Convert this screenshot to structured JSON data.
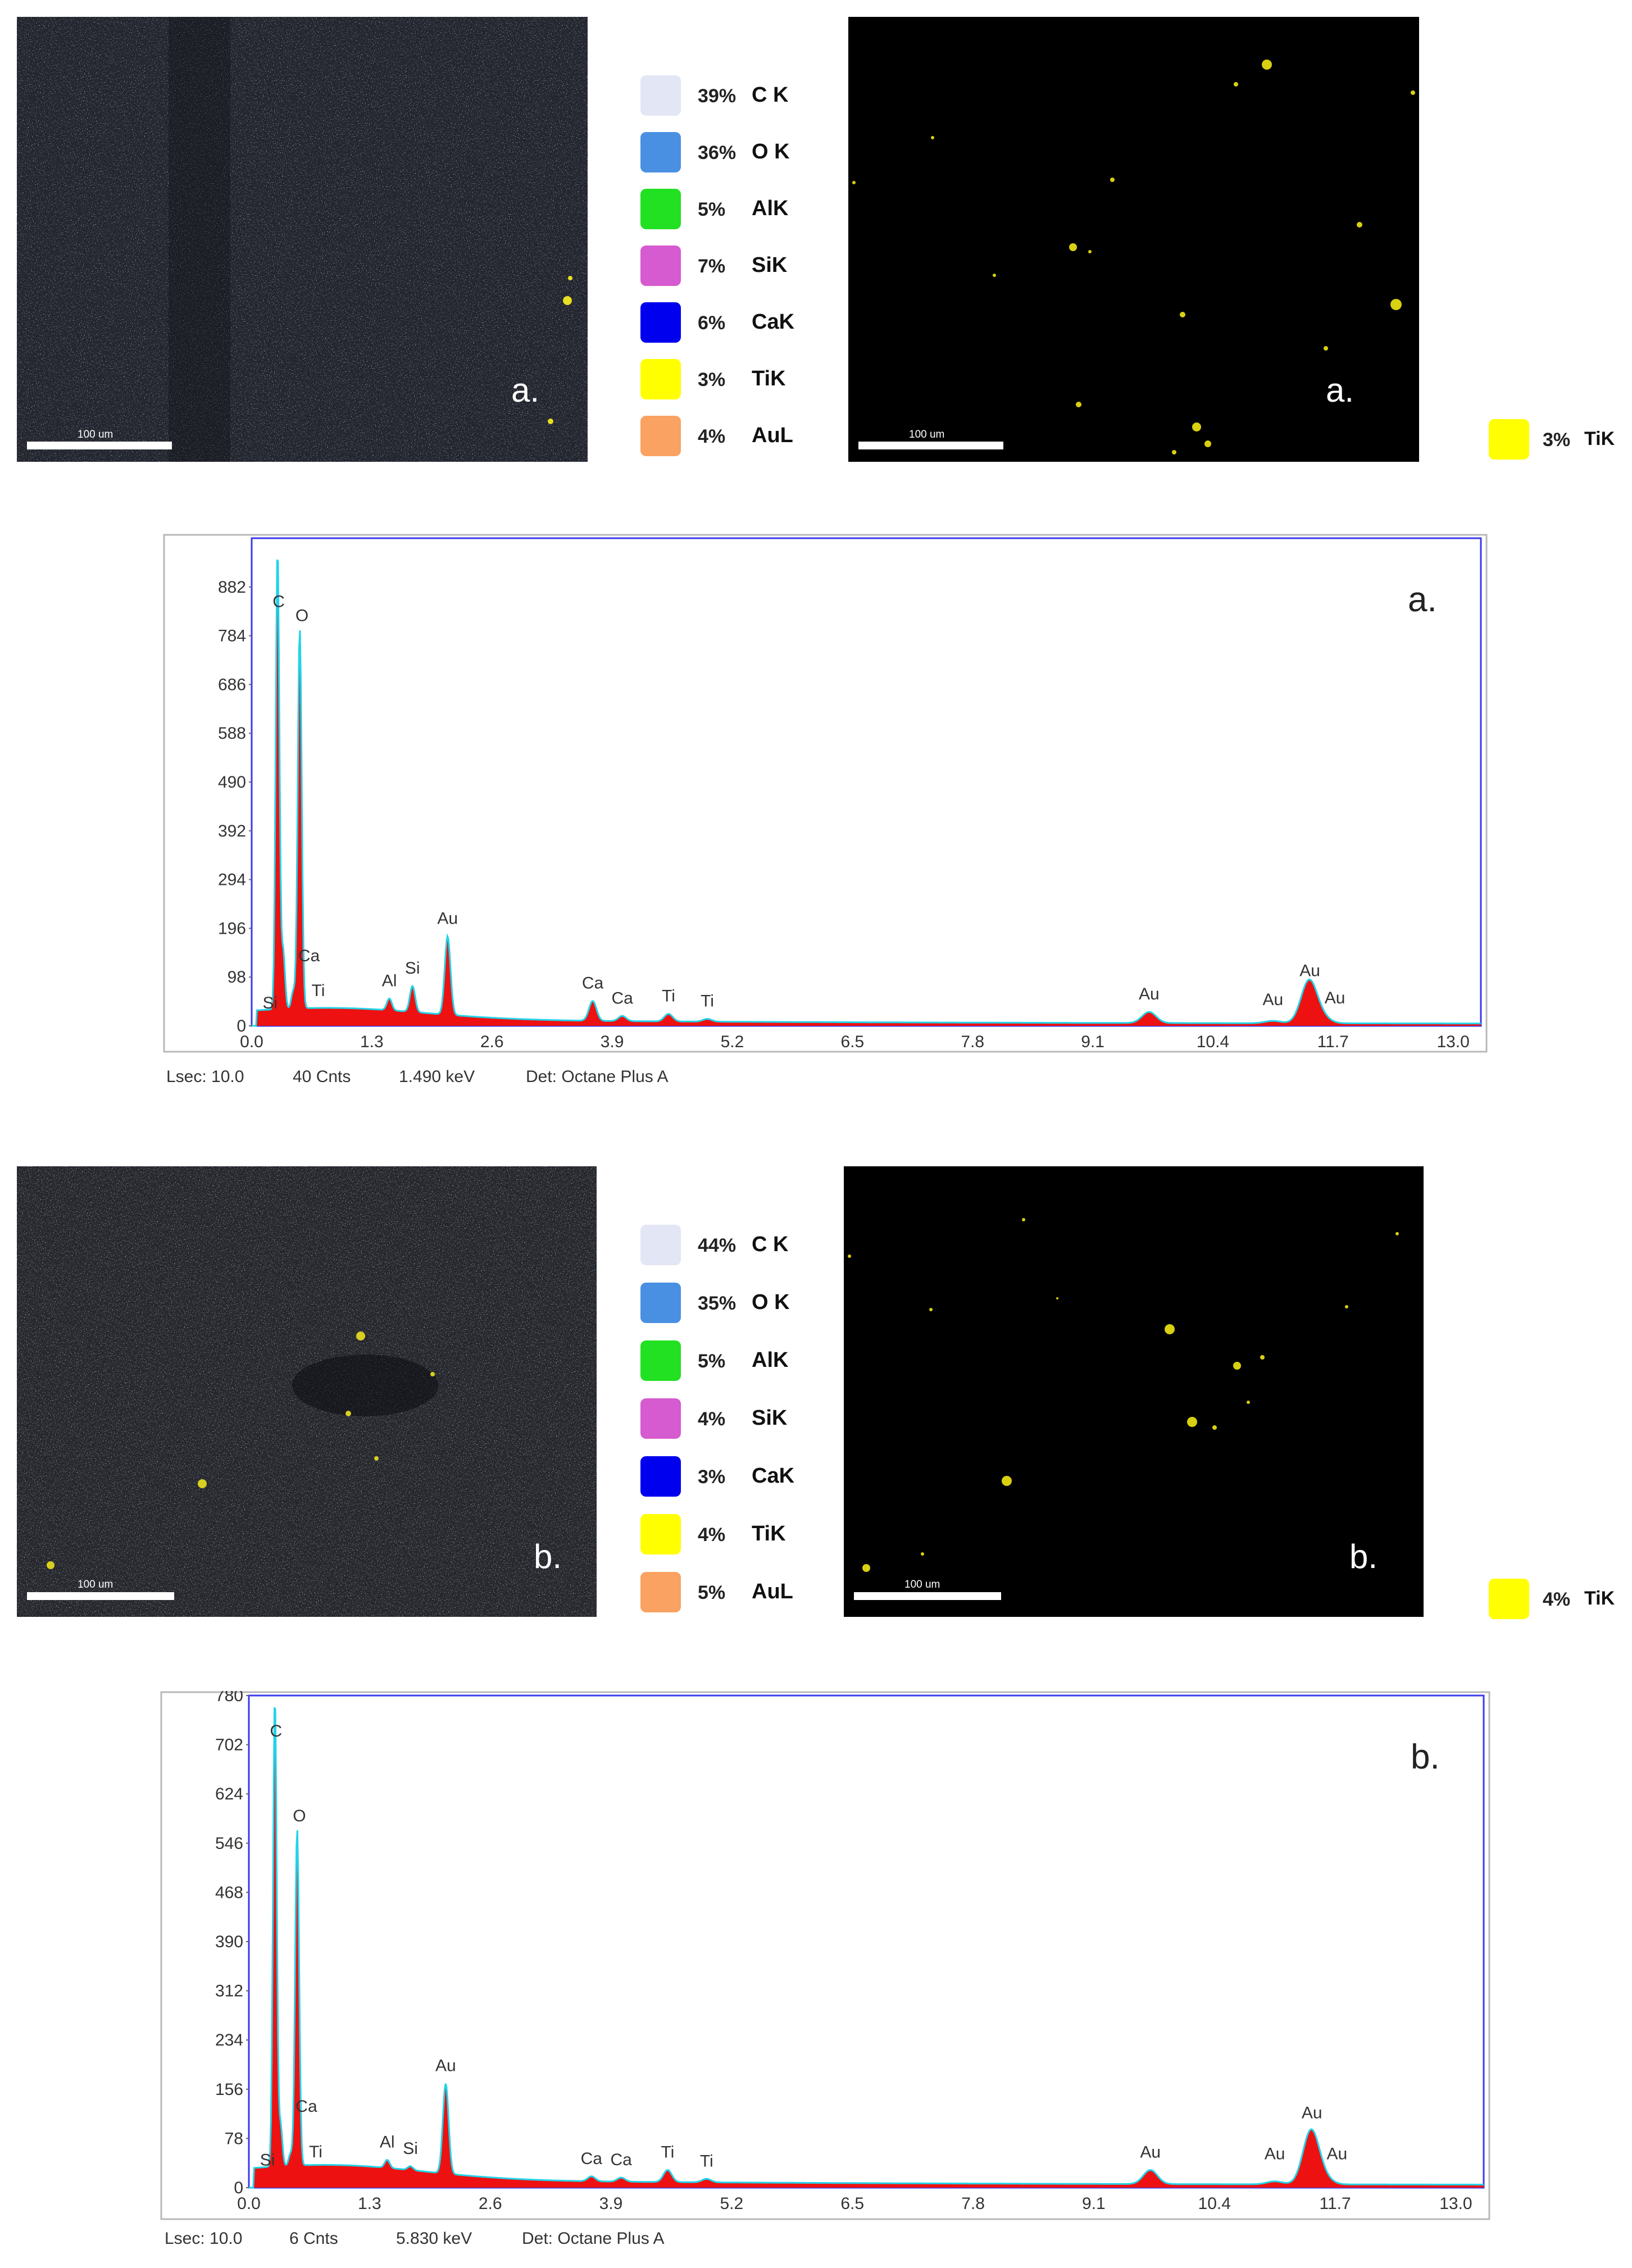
{
  "panels": [
    {
      "tag": "a.",
      "scalebar": "100 um",
      "legend": [
        {
          "pct": "39%",
          "element": "C K",
          "color": "#e3e6f4"
        },
        {
          "pct": "36%",
          "element": "O K",
          "color": "#4a90e2"
        },
        {
          "pct": "5%",
          "element": "AlK",
          "color": "#22e022"
        },
        {
          "pct": "7%",
          "element": "SiK",
          "color": "#d65ad0"
        },
        {
          "pct": "6%",
          "element": "CaK",
          "color": "#0000ee"
        },
        {
          "pct": "3%",
          "element": "TiK",
          "color": "#ffff00"
        },
        {
          "pct": "4%",
          "element": "AuL",
          "color": "#f9a261"
        }
      ],
      "ti_legend": {
        "pct": "3%",
        "element": "TiK",
        "color": "#ffff00"
      },
      "footer": {
        "lsec": "Lsec: 10.0",
        "cnts": "40 Cnts",
        "kev": "1.490 keV",
        "det": "Det: Octane Plus A"
      }
    },
    {
      "tag": "b.",
      "scalebar": "100 um",
      "legend": [
        {
          "pct": "44%",
          "element": "C K",
          "color": "#e3e6f4"
        },
        {
          "pct": "35%",
          "element": "O K",
          "color": "#4a90e2"
        },
        {
          "pct": "5%",
          "element": "AlK",
          "color": "#22e022"
        },
        {
          "pct": "4%",
          "element": "SiK",
          "color": "#d65ad0"
        },
        {
          "pct": "3%",
          "element": "CaK",
          "color": "#0000ee"
        },
        {
          "pct": "4%",
          "element": "TiK",
          "color": "#ffff00"
        },
        {
          "pct": "5%",
          "element": "AuL",
          "color": "#f9a261"
        }
      ],
      "ti_legend": {
        "pct": "4%",
        "element": "TiK",
        "color": "#ffff00"
      },
      "footer": {
        "lsec": "Lsec: 10.0",
        "cnts": "6 Cnts",
        "kev": "5.830 keV",
        "det": "Det: Octane Plus A"
      }
    }
  ],
  "chart_data": [
    {
      "type": "area",
      "title": "a.",
      "xlim": [
        0,
        13.3
      ],
      "ylim": [
        0,
        980
      ],
      "x_ticks": [
        "0.0",
        "1.3",
        "2.6",
        "3.9",
        "5.2",
        "6.5",
        "7.8",
        "9.1",
        "10.4",
        "11.7",
        "13.0"
      ],
      "y_ticks": [
        "0",
        "98",
        "196",
        "294",
        "392",
        "490",
        "588",
        "686",
        "784",
        "882"
      ],
      "peaks": [
        {
          "x": 0.28,
          "y": 960,
          "label": "C"
        },
        {
          "x": 0.52,
          "y": 800,
          "label": "O"
        },
        {
          "x": 0.13,
          "y": 30,
          "label": "Si"
        },
        {
          "x": 0.34,
          "y": 150,
          "label": "Ca"
        },
        {
          "x": 0.45,
          "y": 70,
          "label": "Ti"
        },
        {
          "x": 1.49,
          "y": 55,
          "label": "Al"
        },
        {
          "x": 1.74,
          "y": 80,
          "label": "Si"
        },
        {
          "x": 2.12,
          "y": 180,
          "label": "Au"
        },
        {
          "x": 3.69,
          "y": 50,
          "label": "Ca"
        },
        {
          "x": 4.01,
          "y": 20,
          "label": "Ca"
        },
        {
          "x": 4.51,
          "y": 24,
          "label": "Ti"
        },
        {
          "x": 4.93,
          "y": 14,
          "label": "Ti"
        },
        {
          "x": 9.71,
          "y": 28,
          "label": "Au"
        },
        {
          "x": 11.05,
          "y": 10,
          "label": "Au"
        },
        {
          "x": 11.44,
          "y": 90,
          "label": "Au"
        },
        {
          "x": 11.58,
          "y": 16,
          "label": "Au"
        }
      ],
      "legend_position": "none",
      "grid": false
    },
    {
      "type": "area",
      "title": "b.",
      "xlim": [
        0,
        13.3
      ],
      "ylim": [
        0,
        780
      ],
      "x_ticks": [
        "0.0",
        "1.3",
        "2.6",
        "3.9",
        "5.2",
        "6.5",
        "7.8",
        "9.1",
        "10.4",
        "11.7",
        "13.0"
      ],
      "y_ticks": [
        "0",
        "78",
        "156",
        "234",
        "312",
        "390",
        "468",
        "546",
        "624",
        "702",
        "780"
      ],
      "peaks": [
        {
          "x": 0.28,
          "y": 780,
          "label": "C"
        },
        {
          "x": 0.52,
          "y": 570,
          "label": "O"
        },
        {
          "x": 0.13,
          "y": 24,
          "label": "Si"
        },
        {
          "x": 0.34,
          "y": 100,
          "label": "Ca"
        },
        {
          "x": 0.45,
          "y": 54,
          "label": "Ti"
        },
        {
          "x": 1.49,
          "y": 44,
          "label": "Al"
        },
        {
          "x": 1.74,
          "y": 34,
          "label": "Si"
        },
        {
          "x": 2.12,
          "y": 165,
          "label": "Au"
        },
        {
          "x": 3.69,
          "y": 18,
          "label": "Ca"
        },
        {
          "x": 4.01,
          "y": 16,
          "label": "Ca"
        },
        {
          "x": 4.51,
          "y": 28,
          "label": "Ti"
        },
        {
          "x": 4.93,
          "y": 14,
          "label": "Ti"
        },
        {
          "x": 9.71,
          "y": 28,
          "label": "Au"
        },
        {
          "x": 11.05,
          "y": 10,
          "label": "Au"
        },
        {
          "x": 11.44,
          "y": 90,
          "label": "Au"
        },
        {
          "x": 11.58,
          "y": 14,
          "label": "Au"
        }
      ],
      "legend_position": "none",
      "grid": false
    }
  ]
}
